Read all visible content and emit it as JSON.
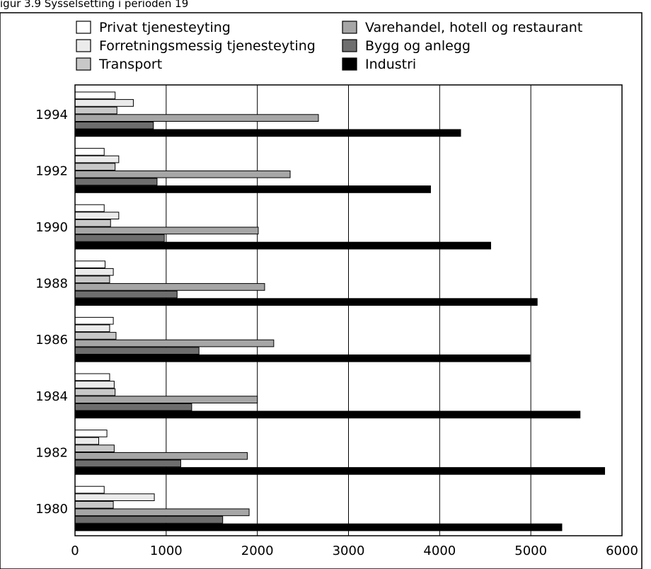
{
  "caption": "igur 3.9 Sysselsetting i perioden 19",
  "chart_data": {
    "type": "bar",
    "orientation": "horizontal",
    "grid": "vertical",
    "xlim": [
      0,
      6000
    ],
    "x_ticks": [
      "0",
      "1000",
      "2000",
      "3000",
      "4000",
      "5000",
      "6000"
    ],
    "categories": [
      "1994",
      "1992",
      "1990",
      "1988",
      "1986",
      "1984",
      "1982",
      "1980"
    ],
    "series": [
      {
        "name": "Privat tjenesteyting",
        "color": "#ffffff",
        "values": [
          440,
          320,
          320,
          330,
          420,
          380,
          350,
          320
        ]
      },
      {
        "name": "Forretningsmessig tjenesteyting",
        "color": "#ebebeb",
        "values": [
          640,
          480,
          480,
          420,
          380,
          430,
          260,
          870
        ]
      },
      {
        "name": "Transport",
        "color": "#c8c8c8",
        "values": [
          460,
          440,
          390,
          380,
          450,
          440,
          430,
          420
        ]
      },
      {
        "name": "Varehandel, hotell og restaurant",
        "color": "#a6a6a6",
        "values": [
          2670,
          2360,
          2010,
          2080,
          2180,
          2000,
          1890,
          1910
        ]
      },
      {
        "name": "Bygg og anlegg",
        "color": "#6e6e6e",
        "values": [
          860,
          900,
          980,
          1120,
          1360,
          1280,
          1160,
          1620
        ]
      },
      {
        "name": "Industri",
        "color": "#000000",
        "values": [
          4230,
          3900,
          4560,
          5070,
          4990,
          5540,
          5810,
          5340
        ]
      }
    ],
    "legend": {
      "placement": "top",
      "order": [
        "Privat tjenesteyting",
        "Forretningsmessig tjenesteyting",
        "Transport",
        "Varehandel, hotell og restaurant",
        "Bygg og anlegg",
        "Industri"
      ]
    }
  }
}
